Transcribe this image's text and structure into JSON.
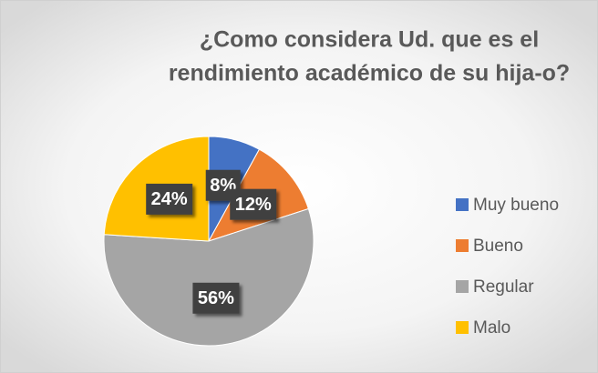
{
  "chart_data": {
    "type": "pie",
    "title": [
      "¿Como considera Ud. que es el",
      "rendimiento académico de su hija-o?"
    ],
    "categories": [
      "Muy bueno",
      "Bueno",
      "Regular",
      "Malo"
    ],
    "values": [
      8,
      12,
      56,
      24
    ],
    "value_labels": [
      "8%",
      "12%",
      "56%",
      "24%"
    ],
    "colors": [
      "#4472c4",
      "#ed7d31",
      "#a5a5a5",
      "#ffc000"
    ],
    "legend": "right"
  }
}
